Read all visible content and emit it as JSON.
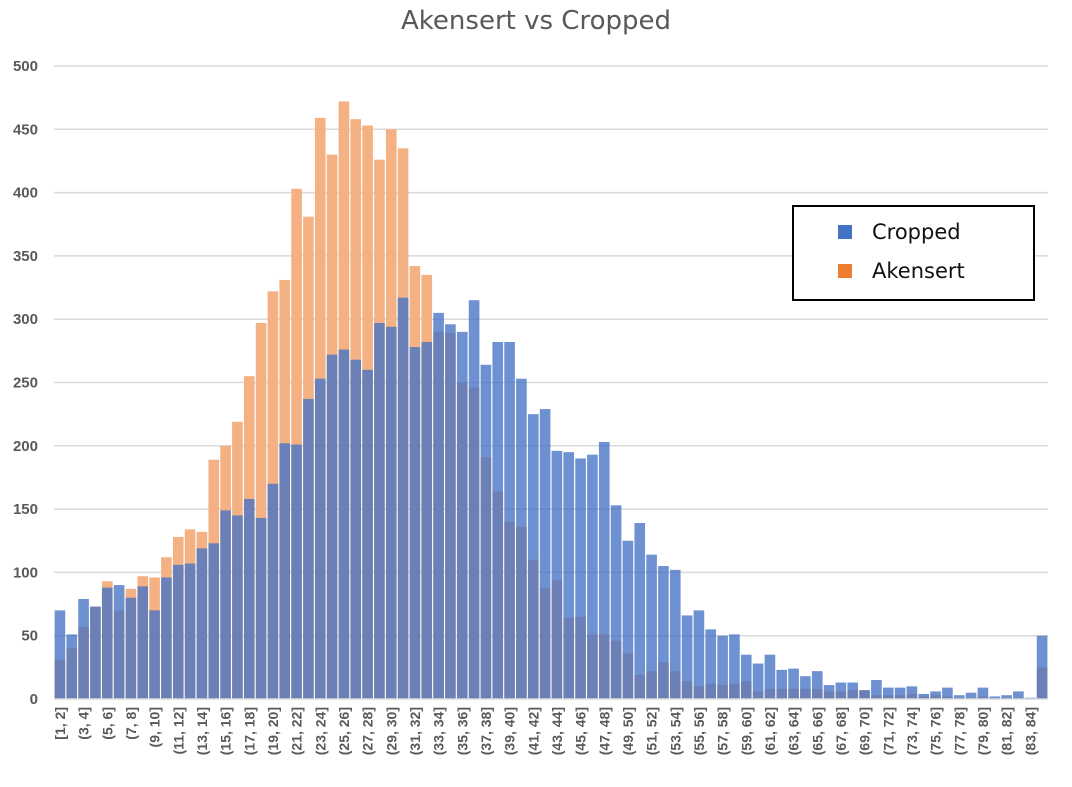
{
  "chart_data": {
    "type": "bar",
    "title": "Akensert vs Cropped",
    "xlabel": "",
    "ylabel": "",
    "ylim": [
      0,
      500
    ],
    "yticks": [
      0,
      50,
      100,
      150,
      200,
      250,
      300,
      350,
      400,
      450,
      500
    ],
    "grid": true,
    "legend_position": "right",
    "categories": [
      "[1, 2]",
      "(2, 3]",
      "(3, 4]",
      "(4, 5]",
      "(5, 6]",
      "(6, 7]",
      "(7, 8]",
      "(8, 9]",
      "(9, 10]",
      "(10, 11]",
      "(11, 12]",
      "(12, 13]",
      "(13, 14]",
      "(14, 15]",
      "(15, 16]",
      "(16, 17]",
      "(17, 18]",
      "(18, 19]",
      "(19, 20]",
      "(20, 21]",
      "(21, 22]",
      "(22, 23]",
      "(23, 24]",
      "(24, 25]",
      "(25, 26]",
      "(26, 27]",
      "(27, 28]",
      "(28, 29]",
      "(29, 30]",
      "(30, 31]",
      "(31, 32]",
      "(32, 33]",
      "(33, 34]",
      "(34, 35]",
      "(35, 36]",
      "(36, 37]",
      "(37, 38]",
      "(38, 39]",
      "(39, 40]",
      "(40, 41]",
      "(41, 42]",
      "(42, 43]",
      "(43, 44]",
      "(44, 45]",
      "(45, 46]",
      "(46, 47]",
      "(47, 48]",
      "(48, 49]",
      "(49, 50]",
      "(50, 51]",
      "(51, 52]",
      "(52, 53]",
      "(53, 54]",
      "(54, 55]",
      "(55, 56]",
      "(56, 57]",
      "(57, 58]",
      "(58, 59]",
      "(59, 60]",
      "(60, 61]",
      "(61, 62]",
      "(62, 63]",
      "(63, 64]",
      "(64, 65]",
      "(65, 66]",
      "(66, 67]",
      "(67, 68]",
      "(68, 69]",
      "(69, 70]",
      "(70, 71]",
      "(71, 72]",
      "(72, 73]",
      "(73, 74]",
      "(74, 75]",
      "(75, 76]",
      "(76, 77]",
      "(77, 78]",
      "(78, 79]",
      "(79, 80]",
      "(80, 81]",
      "(81, 82]",
      "(82, 83]",
      "(83, 84]",
      "(84, 85]"
    ],
    "visible_tick_labels": [
      "[1, 2]",
      "(3, 4]",
      "(5, 6]",
      "(7, 8]",
      "(9, 10]",
      "(11, 12]",
      "(13, 14]",
      "(15, 16]",
      "(17, 18]",
      "(19, 20]",
      "(21, 22]",
      "(23, 24]",
      "(25, 26]",
      "(27, 28]",
      "(29, 30]",
      "(31, 32]",
      "(33, 34]",
      "(35, 36]",
      "(37, 38]",
      "(39, 40]",
      "(41, 42]",
      "(43, 44]",
      "(45, 46]",
      "(47, 48]",
      "(49, 50]",
      "(51, 52]",
      "(53, 54]",
      "(55, 56]",
      "(57, 58]",
      "(59, 60]",
      "(61, 62]",
      "(63, 64]",
      "(65, 66]",
      "(67, 68]",
      "(69, 70]",
      "(71, 72]",
      "(73, 74]",
      "(75, 76]",
      "(77, 78]",
      "(79, 80]",
      "(81, 82]",
      "(83, 84]"
    ],
    "series": [
      {
        "name": "Cropped",
        "color": "#4472C4",
        "values": [
          70,
          51,
          79,
          73,
          88,
          90,
          80,
          89,
          70,
          96,
          106,
          107,
          119,
          123,
          149,
          145,
          158,
          143,
          170,
          202,
          201,
          237,
          253,
          272,
          276,
          268,
          260,
          297,
          294,
          317,
          278,
          282,
          305,
          296,
          290,
          315,
          264,
          282,
          282,
          253,
          225,
          229,
          196,
          195,
          190,
          193,
          203,
          153,
          125,
          139,
          114,
          105,
          102,
          66,
          70,
          55,
          50,
          51,
          35,
          28,
          35,
          23,
          24,
          18,
          22,
          11,
          13,
          13,
          7,
          15,
          9,
          9,
          10,
          4,
          6,
          9,
          3,
          5,
          9,
          2,
          3,
          6,
          1,
          50
        ]
      },
      {
        "name": "Akensert",
        "color": "#ED7D31",
        "values": [
          31,
          40,
          57,
          73,
          93,
          70,
          87,
          97,
          96,
          112,
          128,
          134,
          132,
          189,
          200,
          219,
          255,
          297,
          322,
          331,
          403,
          381,
          459,
          430,
          472,
          458,
          453,
          426,
          450,
          435,
          342,
          335,
          290,
          289,
          250,
          246,
          191,
          164,
          140,
          136,
          110,
          88,
          94,
          64,
          65,
          51,
          51,
          46,
          36,
          19,
          22,
          29,
          22,
          14,
          10,
          12,
          11,
          12,
          14,
          6,
          8,
          8,
          8,
          8,
          8,
          6,
          6,
          7,
          7,
          3,
          3,
          3,
          4,
          2,
          3,
          2,
          1,
          1,
          2,
          0,
          1,
          1,
          0,
          25
        ]
      }
    ]
  }
}
